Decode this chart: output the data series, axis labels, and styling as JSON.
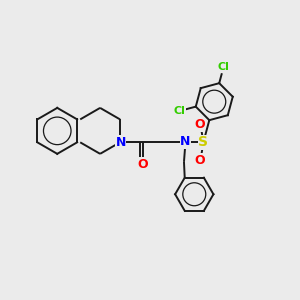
{
  "bg": "#ebebeb",
  "bond_color": "#1a1a1a",
  "bond_lw": 1.4,
  "atom_colors": {
    "N": "#0000ff",
    "O": "#ff0000",
    "S": "#cccc00",
    "Cl": "#33cc00"
  },
  "font_size": 9
}
